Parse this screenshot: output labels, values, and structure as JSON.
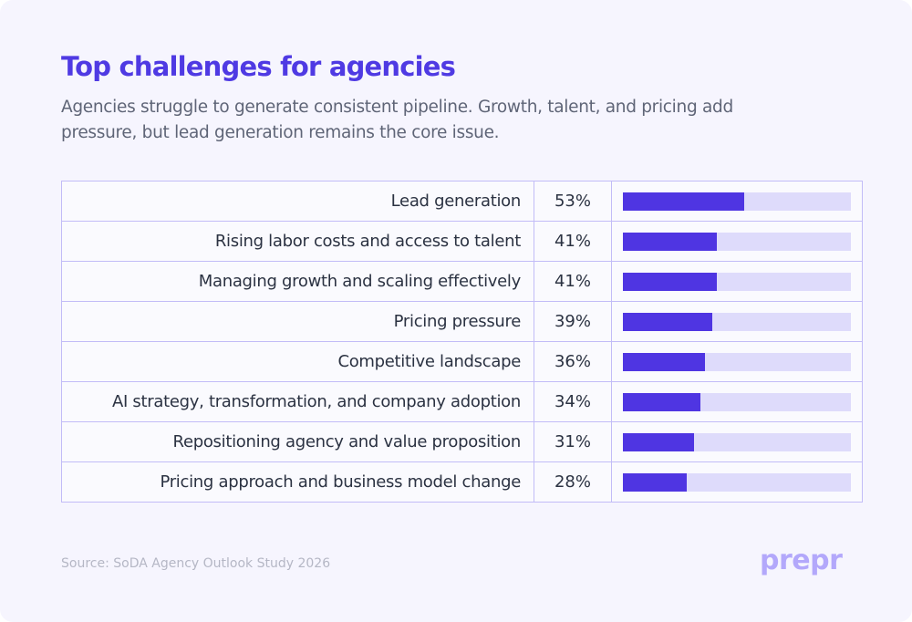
{
  "header": {
    "title": "Top challenges for agencies",
    "subtitle": "Agencies struggle to generate consistent pipeline. Growth, talent, and pricing add pressure, but lead generation remains the core issue."
  },
  "chart_data": {
    "type": "bar",
    "orientation": "horizontal",
    "title": "Top challenges for agencies",
    "xlabel": "",
    "ylabel": "",
    "xlim": [
      0,
      100
    ],
    "unit": "%",
    "categories": [
      "Lead generation",
      "Rising labor costs and access to talent",
      "Managing growth and scaling effectively",
      "Pricing pressure",
      "Competitive landscape",
      "AI strategy, transformation, and company adoption",
      "Repositioning agency and value proposition",
      "Pricing approach and business model change"
    ],
    "values": [
      53,
      41,
      41,
      39,
      36,
      34,
      31,
      28
    ],
    "value_labels": [
      "53%",
      "41%",
      "41%",
      "39%",
      "36%",
      "34%",
      "31%",
      "28%"
    ],
    "colors": {
      "fill": "#4f35e2",
      "track": "#dedbfb",
      "grid": "#c2bcf7"
    }
  },
  "footer": {
    "source": "Source: SoDA Agency Outlook Study 2026",
    "logo_text": "prepr",
    "logo_color": "#b3a8fb"
  }
}
